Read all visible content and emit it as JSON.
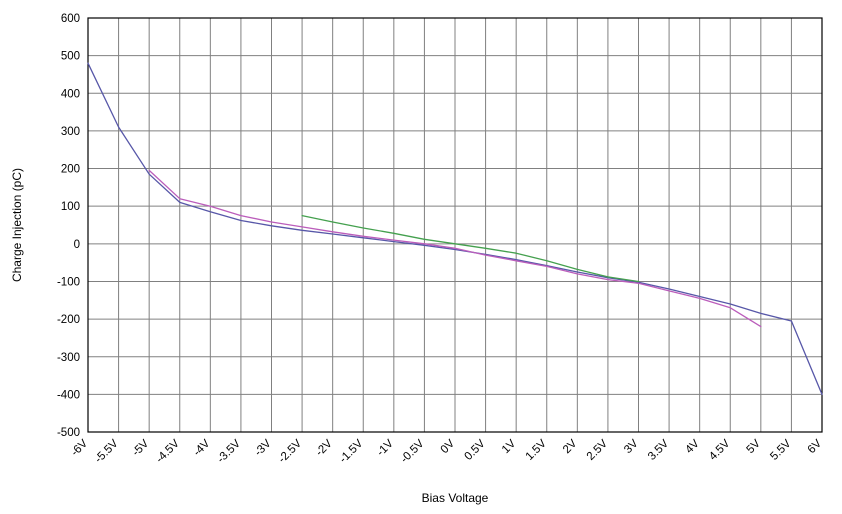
{
  "chart_data": {
    "type": "line",
    "title": "",
    "xlabel": "Bias Voltage",
    "ylabel": "Charge Injection (pC)",
    "xlim": [
      -6,
      6
    ],
    "ylim": [
      -500,
      600
    ],
    "grid": true,
    "legend": "none",
    "grid_color": "#808080",
    "border_color": "#000000",
    "x_ticks": [
      -6,
      -5.5,
      -5,
      -4.5,
      -4,
      -3.5,
      -3,
      -2.5,
      -2,
      -1.5,
      -1,
      -0.5,
      0,
      0.5,
      1,
      1.5,
      2,
      2.5,
      3,
      3.5,
      4,
      4.5,
      5,
      5.5,
      6
    ],
    "x_tick_labels": [
      "-6V",
      "-5.5V",
      "-5V",
      "-4.5V",
      "-4V",
      "-3.5V",
      "-3V",
      "-2.5V",
      "-2V",
      "-1.5V",
      "-1V",
      "-0.5V",
      "0V",
      "0.5V",
      "1V",
      "1.5V",
      "2V",
      "2.5V",
      "3V",
      "3.5V",
      "4V",
      "4.5V",
      "5V",
      "5.5V",
      "6V"
    ],
    "y_ticks": [
      -500,
      -400,
      -300,
      -200,
      -100,
      0,
      100,
      200,
      300,
      400,
      500,
      600
    ],
    "series": [
      {
        "name": "blue-line",
        "color": "#5757a8",
        "x": [
          -6,
          -5.5,
          -5,
          -4.5,
          -4,
          -3.5,
          -3,
          -2.5,
          -2,
          -1.5,
          -1,
          -0.5,
          0,
          0.5,
          1,
          1.5,
          2,
          2.5,
          3,
          3.5,
          4,
          4.5,
          5,
          5.5,
          6
        ],
        "values": [
          480,
          310,
          185,
          110,
          85,
          62,
          48,
          36,
          26,
          16,
          6,
          -4,
          -15,
          -28,
          -42,
          -58,
          -75,
          -90,
          -102,
          -120,
          -140,
          -160,
          -185,
          -205,
          -400
        ]
      },
      {
        "name": "magenta-line",
        "color": "#bb5dbb",
        "x": [
          -5,
          -4.5,
          -4,
          -3.5,
          -3,
          -2.5,
          -2,
          -1.5,
          -1,
          -0.5,
          0,
          0.5,
          1,
          1.5,
          2,
          2.5,
          3,
          3.5,
          4,
          4.5,
          5
        ],
        "values": [
          195,
          120,
          100,
          75,
          58,
          45,
          32,
          20,
          10,
          0,
          -12,
          -30,
          -45,
          -60,
          -80,
          -95,
          -105,
          -125,
          -145,
          -170,
          -220
        ]
      },
      {
        "name": "green-line",
        "color": "#44a04e",
        "x": [
          -2.5,
          -2,
          -1.5,
          -1,
          -0.5,
          0,
          0.5,
          1,
          1.5,
          2,
          2.5,
          3
        ],
        "values": [
          75,
          58,
          42,
          28,
          12,
          0,
          -12,
          -25,
          -45,
          -68,
          -88,
          -100
        ]
      }
    ]
  }
}
